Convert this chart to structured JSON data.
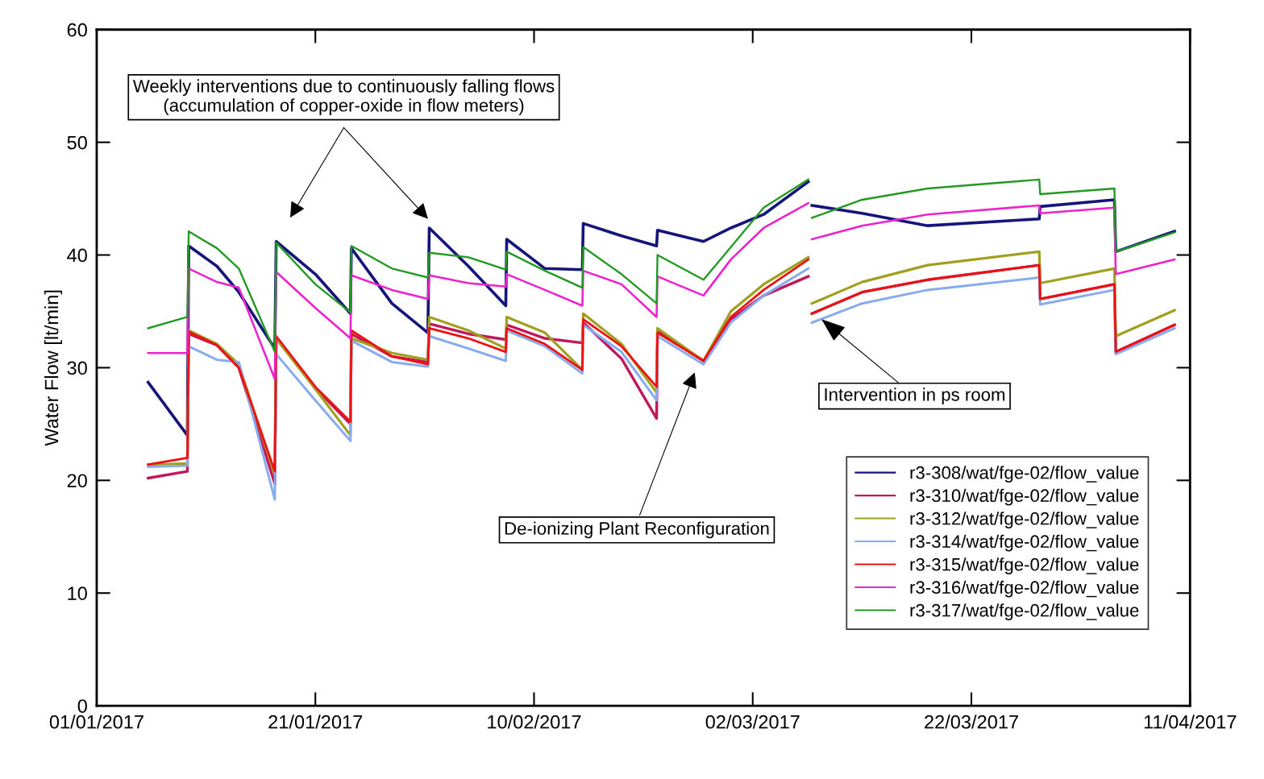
{
  "chart_data": {
    "type": "line",
    "ylabel": "Water Flow [lt/min]",
    "x": [
      "2017-01-05T17:00",
      "2017-01-09T07:00",
      "2017-01-09T10:00",
      "2017-01-12T00:00",
      "2017-01-14T00:00",
      "2017-01-17T07:00",
      "2017-01-17T10:00",
      "2017-01-21T00:00",
      "2017-01-24T05:00",
      "2017-01-24T07:00",
      "2017-01-28T00:00",
      "2017-01-31T07:00",
      "2017-01-31T10:00",
      "2017-02-04T00:00",
      "2017-02-07T10:00",
      "2017-02-07T12:00",
      "2017-02-11T00:00",
      "2017-02-14T10:00",
      "2017-02-14T12:00",
      "2017-02-18T00:00",
      "2017-02-21T05:00",
      "2017-02-21T07:00",
      "2017-02-25T12:00",
      "2017-02-28T00:00",
      "2017-03-03T00:00",
      "2017-03-07T02:00",
      "2017-03-07T06:00",
      "2017-03-07T10:00",
      "2017-03-12T00:00",
      "2017-03-18T00:00",
      "2017-03-28T05:00",
      "2017-03-28T07:00",
      "2017-04-04T02:00",
      "2017-04-04T05:00",
      "2017-04-09T14:00"
    ],
    "series": [
      {
        "name": "r3-308/wat/fge-02/flow_value",
        "color": "#14147a",
        "values": [
          28.7,
          24.0,
          40.8,
          39.0,
          36.7,
          31.7,
          41.2,
          38.3,
          34.8,
          40.6,
          35.7,
          33.1,
          42.4,
          39.0,
          35.5,
          41.4,
          38.8,
          38.7,
          42.8,
          41.7,
          40.8,
          42.2,
          41.2,
          42.4,
          43.6,
          46.5,
          null,
          44.4,
          43.7,
          42.6,
          43.2,
          44.3,
          44.9,
          40.3,
          42.1
        ]
      },
      {
        "name": "r3-310/wat/fge-02/flow_value",
        "color": "#c0185a",
        "values": [
          20.2,
          20.8,
          33.0,
          32.0,
          30.0,
          19.7,
          32.6,
          28.2,
          25.0,
          33.0,
          31.0,
          30.5,
          33.9,
          33.0,
          32.5,
          33.8,
          32.6,
          32.2,
          34.0,
          30.8,
          25.5,
          33.3,
          30.6,
          34.3,
          36.4,
          38.1,
          null,
          34.8,
          36.7,
          37.8,
          39.1,
          36.1,
          37.4,
          31.4,
          33.8
        ]
      },
      {
        "name": "r3-312/wat/fge-02/flow_value",
        "color": "#a0a020",
        "values": [
          21.4,
          21.5,
          33.3,
          32.1,
          30.3,
          20.5,
          32.6,
          28.1,
          24.0,
          32.6,
          31.3,
          30.7,
          34.5,
          33.3,
          31.7,
          34.5,
          33.1,
          29.8,
          34.8,
          32.1,
          27.8,
          33.5,
          30.6,
          35.0,
          37.4,
          39.8,
          null,
          35.7,
          37.6,
          39.1,
          40.3,
          37.5,
          38.8,
          32.8,
          35.1
        ]
      },
      {
        "name": "r3-314/wat/fge-02/flow_value",
        "color": "#88aaee",
        "values": [
          21.2,
          21.3,
          31.9,
          30.7,
          30.5,
          18.3,
          31.2,
          27.1,
          23.5,
          32.4,
          30.5,
          30.1,
          32.8,
          31.7,
          30.6,
          33.3,
          31.9,
          29.5,
          33.8,
          31.4,
          27.1,
          32.8,
          30.3,
          34.0,
          36.4,
          38.8,
          null,
          34.0,
          35.7,
          36.9,
          38.0,
          35.6,
          36.9,
          31.2,
          33.5
        ]
      },
      {
        "name": "r3-315/wat/fge-02/flow_value",
        "color": "#ee1111",
        "values": [
          21.4,
          22.0,
          33.2,
          32.0,
          30.0,
          20.8,
          32.8,
          28.3,
          25.2,
          33.3,
          31.0,
          30.3,
          33.5,
          32.6,
          31.4,
          33.5,
          32.1,
          29.8,
          34.3,
          31.9,
          28.3,
          33.1,
          30.6,
          34.5,
          36.9,
          39.6,
          null,
          34.8,
          36.7,
          37.8,
          39.1,
          36.1,
          37.4,
          31.4,
          33.8
        ]
      },
      {
        "name": "r3-316/wat/fge-02/flow_value",
        "color": "#ee22cc",
        "values": [
          31.3,
          31.3,
          38.8,
          37.6,
          37.1,
          29.0,
          38.5,
          35.3,
          32.6,
          38.2,
          36.9,
          36.1,
          38.2,
          37.5,
          37.2,
          38.3,
          36.9,
          35.5,
          38.6,
          37.4,
          34.5,
          38.1,
          36.4,
          39.6,
          42.4,
          44.6,
          null,
          41.4,
          42.6,
          43.6,
          44.4,
          43.7,
          44.2,
          38.3,
          39.6
        ]
      },
      {
        "name": "r3-317/wat/fge-02/flow_value",
        "color": "#229922",
        "values": [
          33.5,
          34.5,
          42.1,
          40.6,
          38.8,
          31.4,
          41.1,
          37.4,
          34.9,
          40.8,
          38.8,
          38.0,
          40.2,
          39.8,
          38.7,
          40.3,
          38.6,
          37.1,
          40.7,
          38.3,
          35.7,
          40.0,
          37.8,
          40.7,
          44.2,
          46.7,
          null,
          43.3,
          44.9,
          45.9,
          46.7,
          45.4,
          45.9,
          40.3,
          42.0
        ]
      }
    ],
    "xlim": [
      "2017-01-01",
      "2017-04-11"
    ],
    "xticks": [
      {
        "value": "2017-01-01",
        "label": "01/01/2017"
      },
      {
        "value": "2017-01-21",
        "label": "21/01/2017"
      },
      {
        "value": "2017-02-10",
        "label": "10/02/2017"
      },
      {
        "value": "2017-03-02",
        "label": "02/03/2017"
      },
      {
        "value": "2017-03-22",
        "label": "22/03/2017"
      },
      {
        "value": "2017-04-11",
        "label": "11/04/2017"
      }
    ],
    "ylim": [
      0,
      60
    ],
    "yticks": [
      0,
      10,
      20,
      30,
      40,
      50,
      60
    ],
    "grid": false,
    "legend": "bottom right",
    "marker": "none",
    "line_style": "solid",
    "annotations": [
      "Weekly interventions due to continuously falling flows\n(accumulation of copper-oxide in flow meters)",
      "De-ionizing Plant Reconfiguration",
      {
        "text": "Intervention in ps room",
        "x": "2017-03-08T07:00",
        "y": 34.3
      }
    ]
  }
}
